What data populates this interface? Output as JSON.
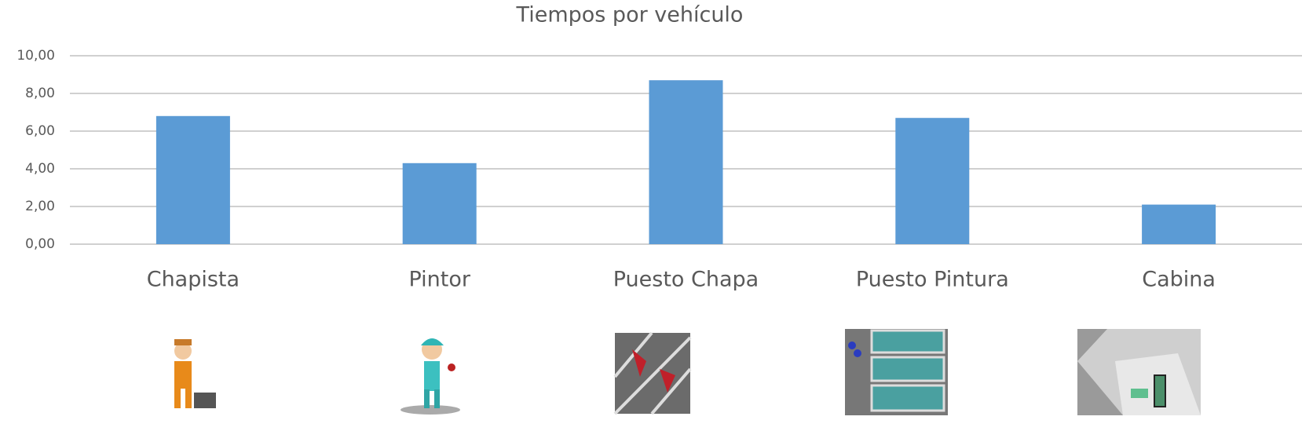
{
  "chart_data": {
    "type": "bar",
    "title": "Tiempos por vehículo",
    "categories": [
      "Chapista",
      "Pintor",
      "Puesto Chapa",
      "Puesto Pintura",
      "Cabina"
    ],
    "values": [
      6.8,
      4.3,
      8.7,
      6.7,
      2.1
    ],
    "color": "#5b9bd5",
    "ylim": [
      0,
      10
    ],
    "yticks": [
      {
        "value": 0,
        "label": "0,00"
      },
      {
        "value": 2,
        "label": "2,00"
      },
      {
        "value": 4,
        "label": "4,00"
      },
      {
        "value": 6,
        "label": "6,00"
      },
      {
        "value": 8,
        "label": "8,00"
      },
      {
        "value": 10,
        "label": "10,00"
      }
    ],
    "grid": true
  }
}
